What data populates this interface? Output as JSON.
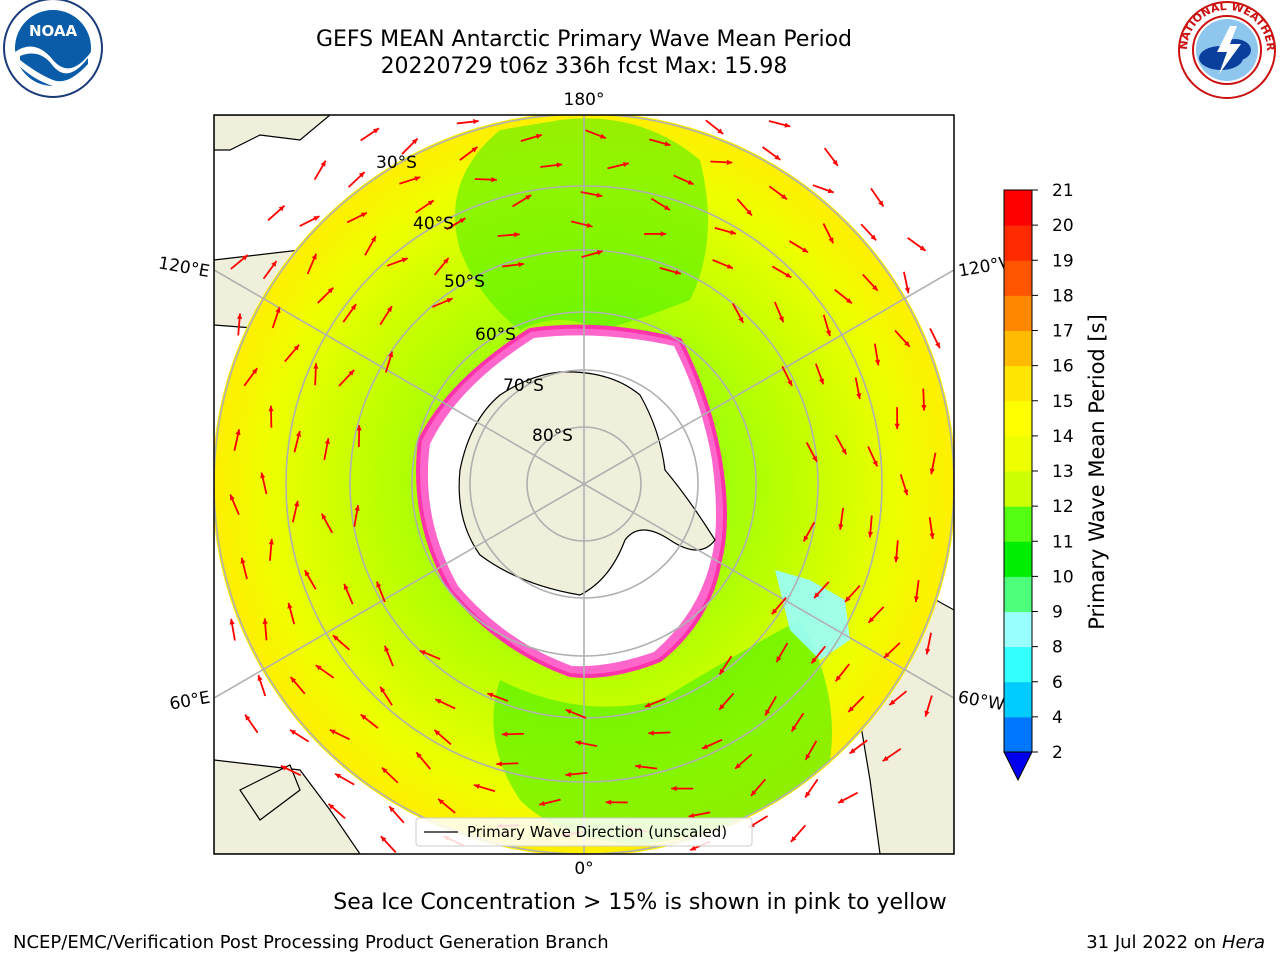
{
  "header": {
    "title_line1": "GEFS MEAN Antarctic Primary Wave Mean Period",
    "title_line2": "20220729 t06z 336h fcst   Max: 15.98"
  },
  "footer": {
    "note": "Sea Ice Concentration > 15% is shown in pink to yellow",
    "credit_left": "NCEP/EMC/Verification Post Processing Product Generation Branch",
    "credit_right_date": "31 Jul 2022 on ",
    "credit_right_host": "Hera"
  },
  "logos": {
    "noaa_text": "NOAA",
    "nws_text": "NATIONAL WEATHER SERVICE"
  },
  "chart_data": {
    "type": "heatmap",
    "projection": "south-polar-stereographic",
    "title": "GEFS MEAN Antarctic Primary Wave Mean Period",
    "subtitle": "20220729 t06z 336h fcst   Max: 15.98",
    "max_value": 15.98,
    "legend_entry": "Primary Wave Direction (unscaled)",
    "legend_location": "bottom-center",
    "colorbar": {
      "label": "Primary Wave Mean Period [s]",
      "ticks": [
        2,
        4,
        6,
        8,
        9,
        10,
        11,
        12,
        13,
        14,
        15,
        16,
        17,
        18,
        19,
        20,
        21
      ],
      "colors": [
        "#0077ff",
        "#00ccff",
        "#33ffff",
        "#99ffff",
        "#4dff7a",
        "#00ee00",
        "#55ff11",
        "#ccff00",
        "#eeff00",
        "#ffff00",
        "#ffe600",
        "#ffbb00",
        "#ff8800",
        "#ff5500",
        "#ff2a00",
        "#ff0000"
      ],
      "extend": "min",
      "under_color": "#0000ee"
    },
    "latitude_labels": [
      "30°S",
      "40°S",
      "50°S",
      "60°S",
      "70°S",
      "80°S"
    ],
    "longitude_labels": [
      "180°",
      "120°E",
      "120°W",
      "60°E",
      "60°W",
      "0°"
    ],
    "sea_ice_color_range": "pink to yellow",
    "arrow_color": "#ff0000",
    "land_color": "#efefdb"
  }
}
